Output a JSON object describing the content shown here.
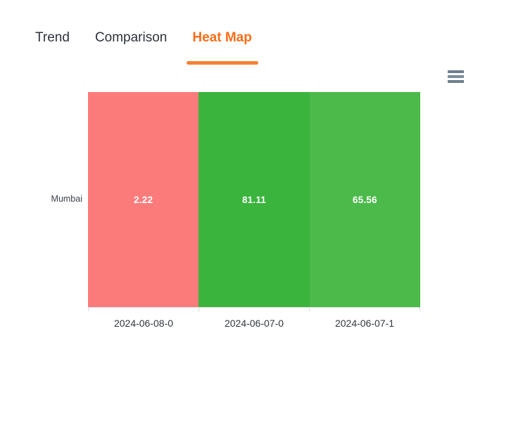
{
  "tabs": [
    {
      "label": "Trend",
      "active": false
    },
    {
      "label": "Comparison",
      "active": false
    },
    {
      "label": "Heat Map",
      "active": true
    }
  ],
  "active_tab": "Heat Map",
  "toolbox": {
    "icon": "hamburger-menu-icon"
  },
  "chart_data": {
    "type": "heatmap",
    "title": "",
    "rows": [
      "Mumbai"
    ],
    "columns": [
      "2024-06-08-0",
      "2024-06-07-0",
      "2024-06-07-1"
    ],
    "series": [
      {
        "name": "Mumbai",
        "values": [
          2.22,
          81.11,
          65.56
        ]
      }
    ],
    "cells": [
      {
        "row": "Mumbai",
        "column": "2024-06-08-0",
        "value": "2.22",
        "color": "#fb7b7b"
      },
      {
        "row": "Mumbai",
        "column": "2024-06-07-0",
        "value": "81.11",
        "color": "#3ab43c"
      },
      {
        "row": "Mumbai",
        "column": "2024-06-07-1",
        "value": "65.56",
        "color": "#4cba4a"
      }
    ],
    "value_text_color": "#ffffff",
    "legend_position": "none",
    "grid": false,
    "axis_line": true
  },
  "colors": {
    "accent_orange": "#f96e17",
    "tab_underline": "#f58236",
    "tab_inactive_text": "#2b333c",
    "row_label_text": "#3c434b",
    "x_axis_label_text": "#30373e",
    "axis_line": "#e3e3e3",
    "menu_icon": "#6d7f8e",
    "background": "#ffffff"
  }
}
